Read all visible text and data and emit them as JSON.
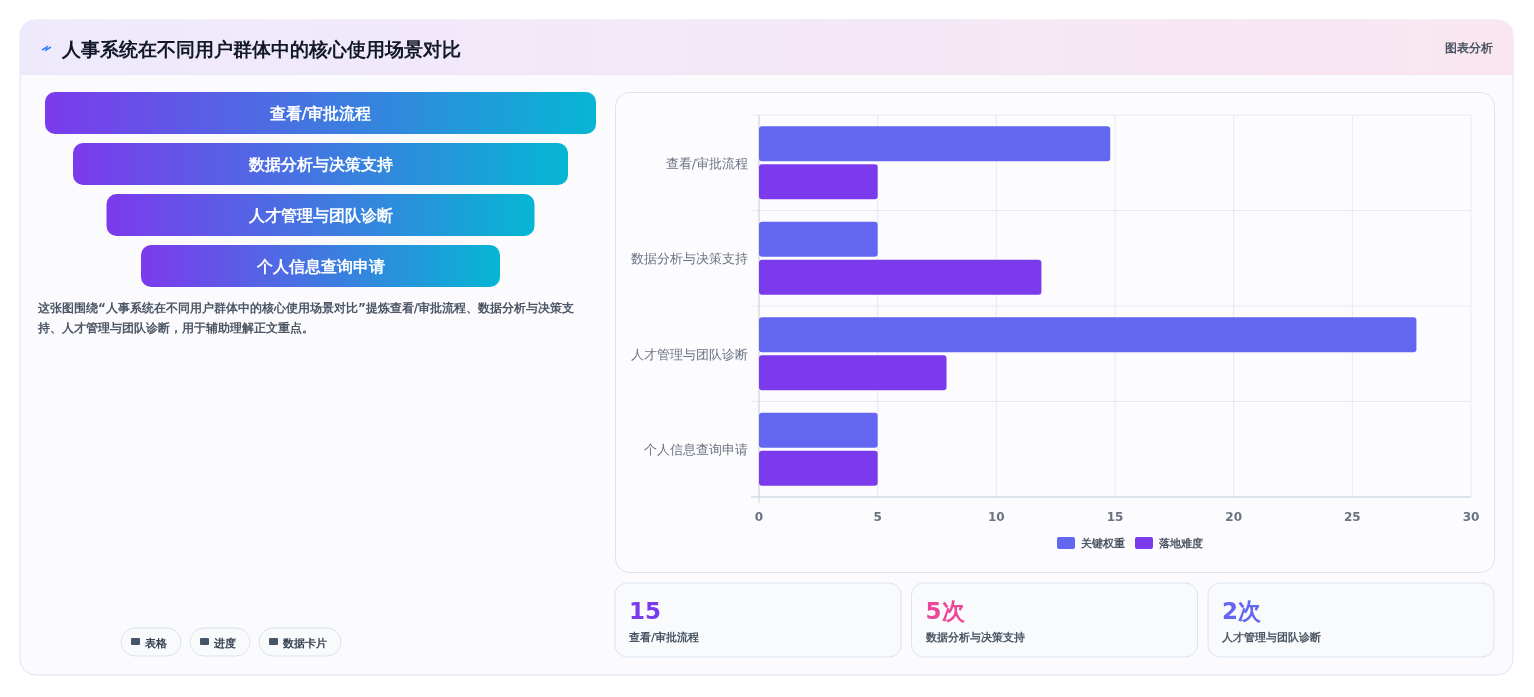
{
  "chart_data": [
    {
      "type": "other",
      "title": "人事系统在不同用户群体中的核心使用场景对比",
      "subtitle": "图表分析",
      "categories": [
        "查看/审批流程",
        "数据分析与决策支持",
        "人才管理与团队诊断",
        "个人信息查询申请"
      ],
      "annotations": [
        "这张图围绕“人事系统在不同用户群体中的核心使用场景对比”提炼查看/审批流程、数据分析与决策支持、人才管理与团队诊断，用于辅助理解正文重点。",
        "表格",
        "进度",
        "数据卡片"
      ]
    },
    {
      "type": "bar",
      "orientation": "horizontal",
      "categories": [
        "查看/审批流程",
        "数据分析与决策支持",
        "人才管理与团队诊断",
        "个人信息查询申请"
      ],
      "series": [
        {
          "name": "关键权重",
          "color": "#6366f1",
          "values": [
            14.8,
            5,
            27.7,
            5
          ]
        },
        {
          "name": "落地难度",
          "color": "#7c3aed",
          "values": [
            5,
            11.9,
            7.9,
            5
          ]
        }
      ],
      "xlim": [
        0,
        30
      ],
      "xticks": [
        0,
        5,
        10,
        15,
        20,
        25,
        30
      ],
      "grid": true,
      "legend": "bottom"
    },
    {
      "type": "other",
      "categories": [
        "查看/审批流程",
        "数据分析与决策支持",
        "人才管理与团队诊断"
      ],
      "value_labels": [
        "15",
        "5次",
        "2次"
      ]
    }
  ]
}
